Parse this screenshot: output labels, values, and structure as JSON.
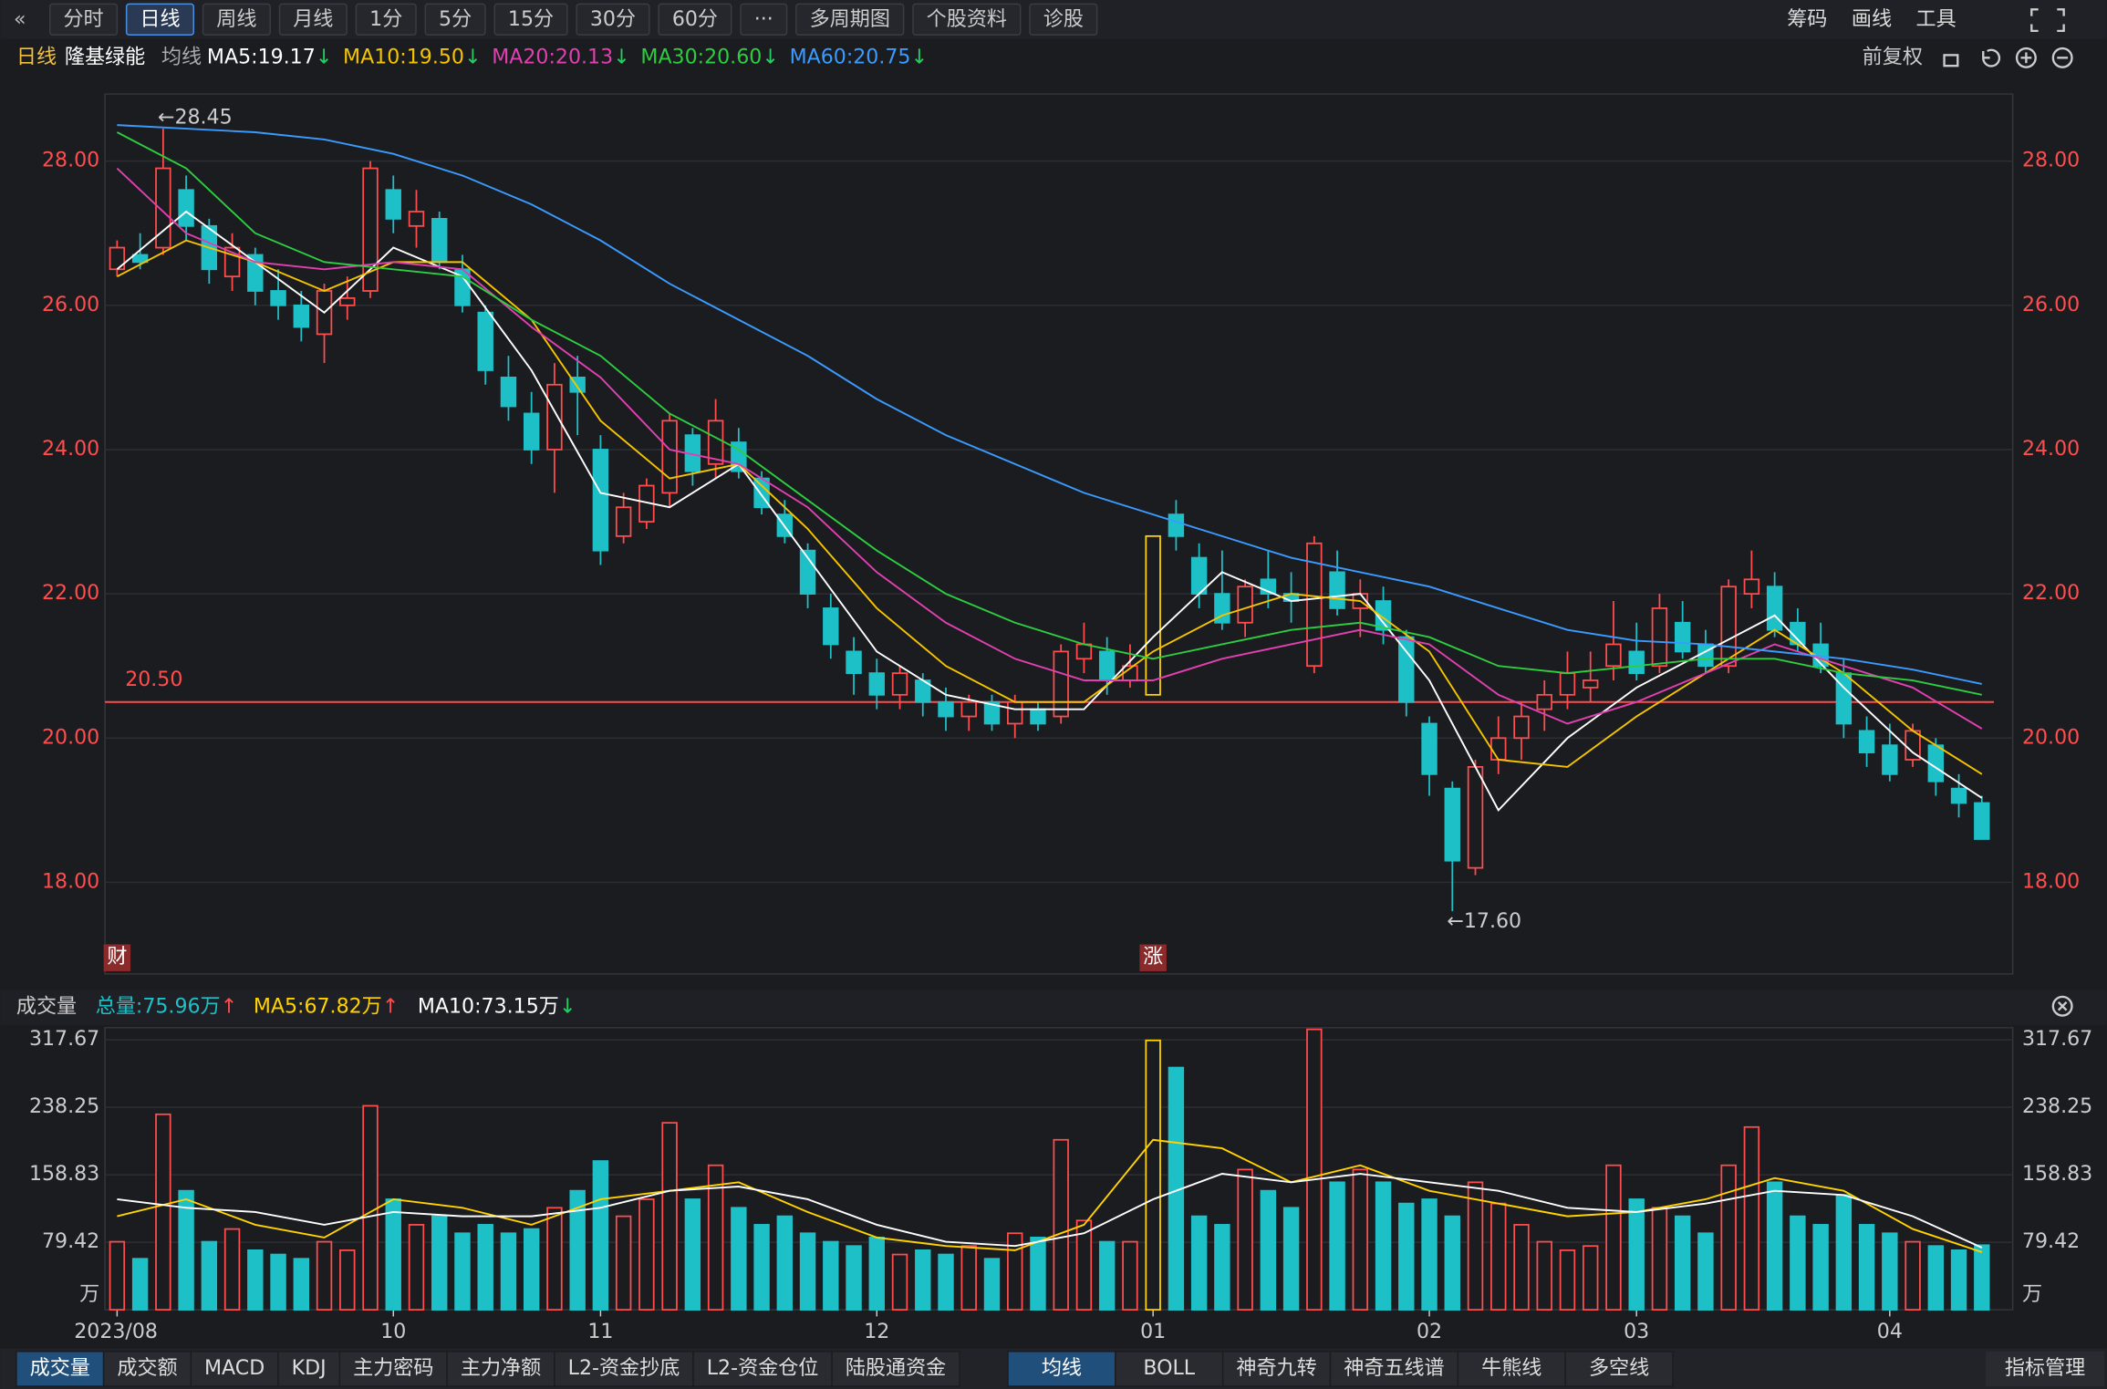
{
  "toolbar": {
    "left": [
      "分时",
      "日线",
      "周线",
      "月线",
      "1分",
      "5分",
      "15分",
      "30分",
      "60分",
      "···",
      "多周期图",
      "个股资料",
      "诊股"
    ],
    "active": 1,
    "right": [
      "筹码",
      "画线",
      "工具"
    ]
  },
  "info_right": "前复权",
  "chart_data": {
    "type": "candlestick",
    "period": "日线",
    "name": "隆基绿能",
    "indicator": "均线",
    "up_color": "#ff4d4d",
    "down_color": "#1ec0c8",
    "limit_up_color": "#ffd400",
    "limit_up": [
      45
    ],
    "ohlc": [
      [
        26.5,
        26.9,
        26.4,
        26.8
      ],
      [
        26.7,
        27.0,
        26.5,
        26.6
      ],
      [
        26.8,
        28.45,
        26.7,
        27.9
      ],
      [
        27.6,
        27.8,
        26.9,
        27.1
      ],
      [
        27.1,
        27.2,
        26.3,
        26.5
      ],
      [
        26.4,
        27.0,
        26.2,
        26.8
      ],
      [
        26.7,
        26.8,
        26.0,
        26.2
      ],
      [
        26.2,
        26.5,
        25.8,
        26.0
      ],
      [
        26.0,
        26.2,
        25.5,
        25.7
      ],
      [
        25.6,
        26.3,
        25.2,
        26.2
      ],
      [
        26.0,
        26.4,
        25.8,
        26.1
      ],
      [
        26.2,
        28.0,
        26.1,
        27.9
      ],
      [
        27.6,
        27.8,
        27.0,
        27.2
      ],
      [
        27.1,
        27.6,
        26.8,
        27.3
      ],
      [
        27.2,
        27.3,
        26.5,
        26.6
      ],
      [
        26.5,
        26.7,
        25.9,
        26.0
      ],
      [
        25.9,
        26.0,
        24.9,
        25.1
      ],
      [
        25.0,
        25.3,
        24.4,
        24.6
      ],
      [
        24.5,
        24.8,
        23.8,
        24.0
      ],
      [
        24.0,
        25.2,
        23.4,
        24.9
      ],
      [
        25.0,
        25.3,
        24.2,
        24.8
      ],
      [
        24.0,
        24.2,
        22.4,
        22.6
      ],
      [
        22.8,
        23.4,
        22.7,
        23.2
      ],
      [
        23.0,
        23.6,
        22.9,
        23.5
      ],
      [
        23.4,
        24.5,
        23.2,
        24.4
      ],
      [
        24.2,
        24.3,
        23.5,
        23.7
      ],
      [
        23.8,
        24.7,
        23.6,
        24.4
      ],
      [
        24.1,
        24.3,
        23.6,
        23.7
      ],
      [
        23.6,
        23.7,
        23.1,
        23.2
      ],
      [
        23.1,
        23.3,
        22.7,
        22.8
      ],
      [
        22.6,
        22.7,
        21.8,
        22.0
      ],
      [
        21.8,
        22.0,
        21.1,
        21.3
      ],
      [
        21.2,
        21.4,
        20.6,
        20.9
      ],
      [
        20.9,
        21.1,
        20.4,
        20.6
      ],
      [
        20.6,
        21.0,
        20.4,
        20.9
      ],
      [
        20.8,
        20.9,
        20.3,
        20.5
      ],
      [
        20.5,
        20.7,
        20.1,
        20.3
      ],
      [
        20.3,
        20.6,
        20.1,
        20.5
      ],
      [
        20.5,
        20.6,
        20.1,
        20.2
      ],
      [
        20.2,
        20.6,
        20.0,
        20.5
      ],
      [
        20.4,
        20.5,
        20.1,
        20.2
      ],
      [
        20.3,
        21.3,
        20.2,
        21.2
      ],
      [
        21.1,
        21.6,
        20.9,
        21.3
      ],
      [
        21.2,
        21.4,
        20.6,
        20.8
      ],
      [
        20.8,
        21.3,
        20.7,
        21.0
      ],
      [
        20.6,
        22.8,
        20.6,
        22.8
      ],
      [
        23.1,
        23.3,
        22.6,
        22.8
      ],
      [
        22.5,
        22.7,
        21.8,
        22.0
      ],
      [
        22.0,
        22.6,
        21.5,
        21.6
      ],
      [
        21.6,
        22.2,
        21.4,
        22.1
      ],
      [
        22.2,
        22.6,
        21.8,
        22.0
      ],
      [
        22.0,
        22.3,
        21.6,
        21.9
      ],
      [
        21.0,
        22.8,
        20.9,
        22.7
      ],
      [
        22.3,
        22.6,
        21.7,
        21.8
      ],
      [
        21.8,
        22.2,
        21.4,
        22.0
      ],
      [
        21.9,
        22.1,
        21.3,
        21.5
      ],
      [
        21.4,
        21.5,
        20.3,
        20.5
      ],
      [
        20.2,
        20.3,
        19.2,
        19.5
      ],
      [
        19.3,
        19.4,
        17.6,
        18.3
      ],
      [
        18.2,
        19.7,
        18.1,
        19.6
      ],
      [
        19.7,
        20.3,
        19.5,
        20.0
      ],
      [
        20.0,
        20.5,
        19.7,
        20.3
      ],
      [
        20.4,
        20.8,
        20.1,
        20.6
      ],
      [
        20.6,
        21.2,
        20.4,
        20.9
      ],
      [
        20.7,
        21.2,
        20.5,
        20.8
      ],
      [
        21.0,
        21.9,
        20.8,
        21.3
      ],
      [
        21.2,
        21.6,
        20.8,
        20.9
      ],
      [
        21.0,
        22.0,
        20.9,
        21.8
      ],
      [
        21.6,
        21.9,
        21.1,
        21.2
      ],
      [
        21.3,
        21.5,
        20.9,
        21.0
      ],
      [
        21.0,
        22.2,
        20.9,
        22.1
      ],
      [
        22.0,
        22.6,
        21.8,
        22.2
      ],
      [
        22.1,
        22.3,
        21.4,
        21.5
      ],
      [
        21.6,
        21.8,
        21.2,
        21.3
      ],
      [
        21.3,
        21.6,
        20.9,
        21.0
      ],
      [
        20.9,
        21.1,
        20.0,
        20.2
      ],
      [
        20.1,
        20.3,
        19.6,
        19.8
      ],
      [
        19.9,
        20.2,
        19.4,
        19.5
      ],
      [
        19.7,
        20.2,
        19.6,
        20.1
      ],
      [
        19.9,
        20.0,
        19.2,
        19.4
      ],
      [
        19.3,
        19.5,
        18.9,
        19.1
      ],
      [
        19.1,
        19.2,
        18.6,
        18.6
      ]
    ],
    "ma_x": [
      0,
      3,
      6,
      9,
      12,
      15,
      18,
      21,
      24,
      27,
      30,
      33,
      36,
      39,
      42,
      45,
      48,
      51,
      54,
      57,
      60,
      63,
      66,
      69,
      72,
      75,
      78,
      81
    ],
    "series": [
      {
        "name": "MA5:19.17",
        "color": "#ffffff",
        "trend": "↓",
        "trend_color": "#22d060",
        "values": [
          26.5,
          27.3,
          26.6,
          25.9,
          26.8,
          26.4,
          25.1,
          23.4,
          23.2,
          23.8,
          22.5,
          21.2,
          20.6,
          20.4,
          20.4,
          21.4,
          22.3,
          21.9,
          22.0,
          20.8,
          19.0,
          20.0,
          20.7,
          21.2,
          21.7,
          20.7,
          19.8,
          19.17
        ]
      },
      {
        "name": "MA10:19.50",
        "color": "#f5c400",
        "trend": "↓",
        "trend_color": "#22d060",
        "values": [
          26.4,
          26.9,
          26.6,
          26.2,
          26.6,
          26.6,
          25.8,
          24.4,
          23.6,
          23.8,
          22.9,
          21.8,
          21.0,
          20.5,
          20.5,
          21.2,
          21.7,
          22.0,
          21.9,
          21.2,
          19.7,
          19.6,
          20.3,
          20.9,
          21.5,
          20.9,
          20.1,
          19.5
        ]
      },
      {
        "name": "MA20:20.13",
        "color": "#e040b0",
        "trend": "↓",
        "trend_color": "#22d060",
        "values": [
          27.9,
          27.0,
          26.6,
          26.5,
          26.6,
          26.5,
          25.7,
          25.0,
          24.0,
          23.8,
          23.2,
          22.3,
          21.6,
          21.1,
          20.8,
          20.8,
          21.1,
          21.3,
          21.5,
          21.3,
          20.6,
          20.2,
          20.5,
          20.9,
          21.3,
          21.0,
          20.7,
          20.13
        ]
      },
      {
        "name": "MA30:20.60",
        "color": "#2ecc40",
        "trend": "↓",
        "trend_color": "#22d060",
        "values": [
          28.4,
          27.9,
          27.0,
          26.6,
          26.5,
          26.4,
          25.8,
          25.3,
          24.5,
          24.0,
          23.3,
          22.6,
          22.0,
          21.6,
          21.3,
          21.1,
          21.3,
          21.5,
          21.6,
          21.4,
          21.0,
          20.9,
          21.0,
          21.1,
          21.1,
          20.9,
          20.8,
          20.6
        ]
      },
      {
        "name": "MA60:20.75",
        "color": "#3a9bff",
        "trend": "↓",
        "trend_color": "#22d060",
        "values": [
          28.5,
          28.45,
          28.4,
          28.3,
          28.1,
          27.8,
          27.4,
          26.9,
          26.3,
          25.8,
          25.3,
          24.7,
          24.2,
          23.8,
          23.4,
          23.1,
          22.8,
          22.5,
          22.3,
          22.1,
          21.8,
          21.5,
          21.35,
          21.3,
          21.2,
          21.1,
          20.95,
          20.75
        ]
      }
    ],
    "ylim": [
      16.73,
      28.93
    ],
    "yticks": [
      {
        "value": 18,
        "label": "18.00"
      },
      {
        "value": 20,
        "label": "20.00"
      },
      {
        "value": 22,
        "label": "22.00"
      },
      {
        "value": 24,
        "label": "24.00"
      },
      {
        "value": 26,
        "label": "26.00"
      },
      {
        "value": 28,
        "label": "28.00"
      }
    ],
    "xticks": [
      {
        "value": 0,
        "label": "2023/08"
      },
      {
        "value": 12,
        "label": "10"
      },
      {
        "value": 21,
        "label": "11"
      },
      {
        "value": 33,
        "label": "12"
      },
      {
        "value": 45,
        "label": "01"
      },
      {
        "value": 57,
        "label": "02"
      },
      {
        "value": 66,
        "label": "03"
      },
      {
        "value": 77,
        "label": "04"
      }
    ],
    "reference_line": {
      "value": 20.5,
      "label": "20.50",
      "color": "#ff4d4d"
    },
    "annotations": [
      {
        "x": 2,
        "value": 28.45,
        "label": "←28.45",
        "side": "above"
      },
      {
        "x": 58,
        "value": 17.6,
        "label": "←17.60",
        "side": "below"
      }
    ],
    "markers": [
      {
        "x": 0,
        "label": "财"
      },
      {
        "x": 45,
        "label": "涨"
      }
    ],
    "volume": {
      "title": "成交量",
      "total": "总量:75.96万",
      "total_trend": "↑",
      "total_color": "#1ec0c8",
      "total_trend_color": "#ff4d4d",
      "values": [
        80,
        60,
        230,
        140,
        80,
        95,
        70,
        65,
        60,
        80,
        70,
        240,
        130,
        100,
        110,
        90,
        100,
        90,
        95,
        120,
        140,
        175,
        110,
        130,
        220,
        130,
        170,
        120,
        100,
        110,
        90,
        80,
        75,
        85,
        65,
        70,
        65,
        75,
        60,
        90,
        85,
        200,
        105,
        80,
        80,
        317,
        285,
        110,
        100,
        165,
        140,
        120,
        330,
        150,
        165,
        150,
        125,
        130,
        110,
        150,
        125,
        100,
        80,
        70,
        75,
        170,
        130,
        120,
        110,
        90,
        170,
        215,
        150,
        110,
        100,
        135,
        100,
        90,
        80,
        75,
        70,
        75.96
      ],
      "ylim": [
        0,
        332
      ],
      "yticks": [
        79.42,
        158.83,
        238.25,
        317.67
      ],
      "unit": "万",
      "series": [
        {
          "name": "MA5:67.82万",
          "color": "#ffd200",
          "trend": "↑",
          "trend_color": "#ff4d4d",
          "values": [
            110,
            130,
            100,
            85,
            130,
            120,
            100,
            130,
            140,
            150,
            115,
            85,
            75,
            70,
            100,
            200,
            190,
            150,
            170,
            140,
            125,
            110,
            115,
            130,
            155,
            140,
            95,
            67.82
          ]
        },
        {
          "name": "MA10:73.15万",
          "color": "#ffffff",
          "trend": "↓",
          "trend_color": "#22d060",
          "values": [
            130,
            120,
            115,
            100,
            115,
            110,
            110,
            120,
            140,
            145,
            130,
            100,
            80,
            75,
            90,
            130,
            160,
            150,
            160,
            150,
            140,
            120,
            115,
            125,
            140,
            135,
            110,
            73.15
          ]
        }
      ]
    }
  },
  "bottom_tabs": {
    "left": [
      "成交量",
      "成交额",
      "MACD",
      "KDJ",
      "主力密码",
      "主力净额",
      "L2-资金抄底",
      "L2-资金仓位",
      "陆股通资金"
    ],
    "left_active": 0,
    "right": [
      "均线",
      "BOLL",
      "神奇九转",
      "神奇五线谱",
      "牛熊线",
      "多空线"
    ],
    "right_active": 0,
    "manage": "指标管理"
  }
}
